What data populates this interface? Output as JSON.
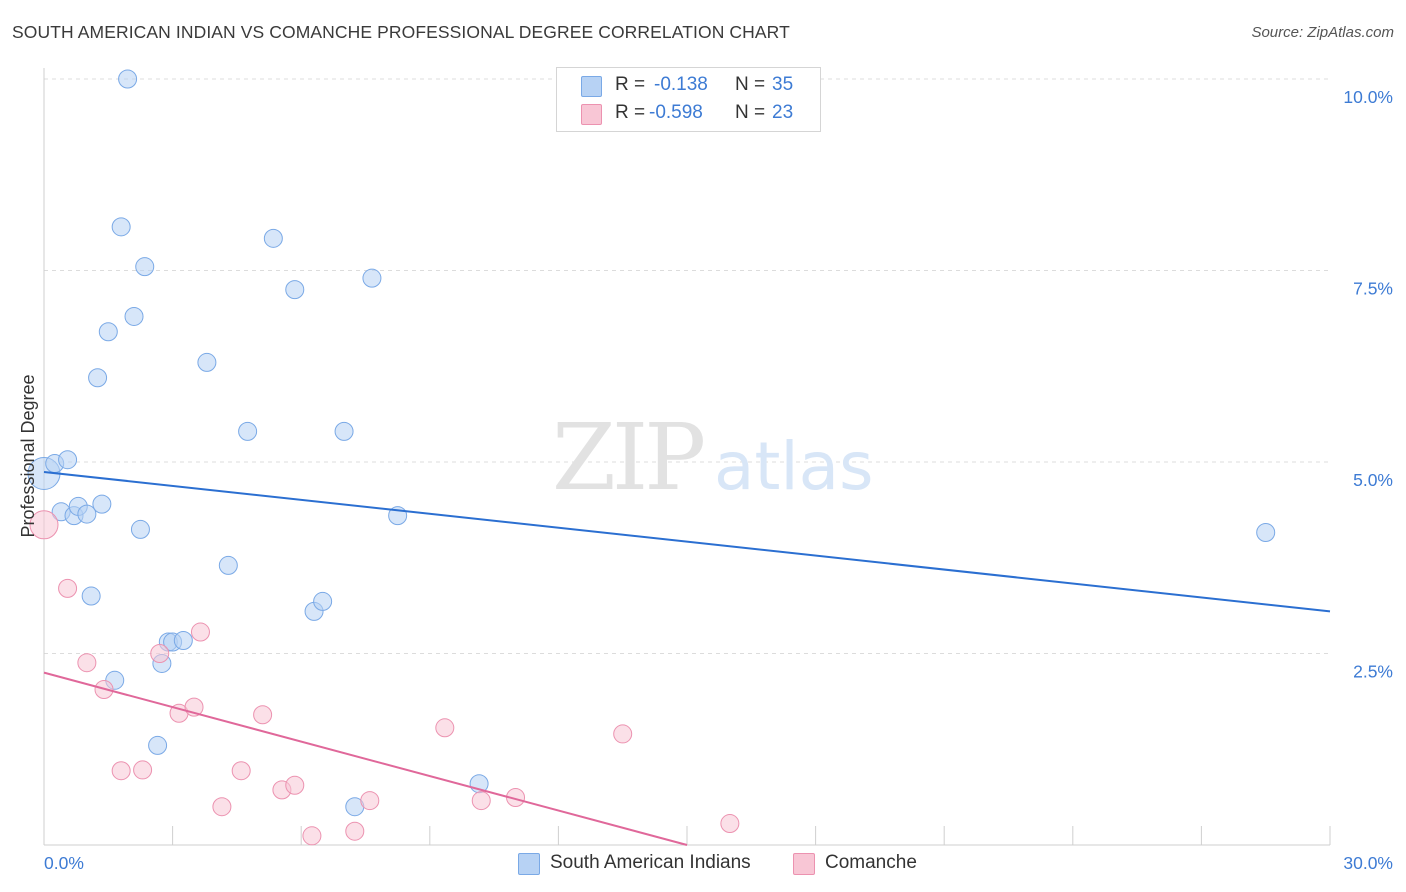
{
  "title": "SOUTH AMERICAN INDIAN VS COMANCHE PROFESSIONAL DEGREE CORRELATION CHART",
  "source": "Source: ZipAtlas.com",
  "watermark": {
    "zip": "ZIP",
    "atlas": "atlas"
  },
  "legend": {
    "r_label": "R =",
    "n_label": "N =",
    "rows": [
      {
        "r": "-0.138",
        "n": "35"
      },
      {
        "r": "-0.598",
        "n": "23"
      }
    ]
  },
  "colors": {
    "blue_fill": "#b7d2f4",
    "blue_stroke": "#7aa9e6",
    "blue_line": "#2b6fd1",
    "pink_fill": "#f8c6d5",
    "pink_stroke": "#ec92b0",
    "pink_line": "#e0689a",
    "accent_text": "#3d7bd4"
  },
  "chart_data": {
    "type": "scatter",
    "title": "SOUTH AMERICAN INDIAN VS COMANCHE PROFESSIONAL DEGREE CORRELATION CHART",
    "xlabel": "",
    "ylabel": "Professional Degree",
    "xlim": [
      0,
      30
    ],
    "ylim": [
      0,
      10
    ],
    "x_tick_labels": [
      "0.0%",
      "30.0%"
    ],
    "y_tick_labels": [
      "10.0%",
      "7.5%",
      "5.0%",
      "2.5%"
    ],
    "y_tick_values": [
      10,
      7.5,
      5,
      2.5
    ],
    "x_minor_ticks": [
      3,
      6,
      9,
      12,
      15,
      18,
      21,
      24,
      27,
      30
    ],
    "grid": true,
    "series": [
      {
        "name": "South American Indians",
        "color": "blue",
        "trend": {
          "x0": 0,
          "y0": 4.87,
          "x1": 30,
          "y1": 3.05
        },
        "points": [
          [
            0.0,
            4.85,
            16
          ],
          [
            0.25,
            4.98,
            9
          ],
          [
            0.55,
            5.03,
            9
          ],
          [
            0.4,
            4.35,
            9
          ],
          [
            0.7,
            4.3,
            9
          ],
          [
            0.8,
            4.42,
            9
          ],
          [
            1.0,
            4.32,
            9
          ],
          [
            1.35,
            4.45,
            9
          ],
          [
            1.1,
            3.25,
            9
          ],
          [
            1.25,
            6.1,
            9
          ],
          [
            1.5,
            6.7,
            9
          ],
          [
            1.8,
            8.07,
            9
          ],
          [
            1.95,
            10.0,
            9
          ],
          [
            2.1,
            6.9,
            9
          ],
          [
            2.25,
            4.12,
            9
          ],
          [
            2.35,
            7.55,
            9
          ],
          [
            1.65,
            2.15,
            9
          ],
          [
            2.65,
            1.3,
            9
          ],
          [
            2.75,
            2.37,
            9
          ],
          [
            2.9,
            2.65,
            9
          ],
          [
            3.0,
            2.65,
            9
          ],
          [
            3.25,
            2.67,
            9
          ],
          [
            3.8,
            6.3,
            9
          ],
          [
            4.3,
            3.65,
            9
          ],
          [
            4.75,
            5.4,
            9
          ],
          [
            5.35,
            7.92,
            9
          ],
          [
            5.85,
            7.25,
            9
          ],
          [
            6.3,
            3.05,
            9
          ],
          [
            6.5,
            3.18,
            9
          ],
          [
            7.0,
            5.4,
            9
          ],
          [
            7.25,
            0.5,
            9
          ],
          [
            7.65,
            7.4,
            9
          ],
          [
            8.25,
            4.3,
            9
          ],
          [
            10.15,
            0.8,
            9
          ],
          [
            28.5,
            4.08,
            9
          ]
        ]
      },
      {
        "name": "Comanche",
        "color": "pink",
        "trend": {
          "x0": 0,
          "y0": 2.25,
          "x1": 15,
          "y1": 0.0
        },
        "points": [
          [
            0.0,
            4.18,
            14
          ],
          [
            0.55,
            3.35,
            9
          ],
          [
            1.0,
            2.38,
            9
          ],
          [
            1.4,
            2.03,
            9
          ],
          [
            1.8,
            0.97,
            9
          ],
          [
            2.3,
            0.98,
            9
          ],
          [
            2.7,
            2.5,
            9
          ],
          [
            3.15,
            1.72,
            9
          ],
          [
            3.5,
            1.8,
            9
          ],
          [
            3.65,
            2.78,
            9
          ],
          [
            4.15,
            0.5,
            9
          ],
          [
            4.6,
            0.97,
            9
          ],
          [
            5.1,
            1.7,
            9
          ],
          [
            5.55,
            0.72,
            9
          ],
          [
            5.85,
            0.78,
            9
          ],
          [
            6.25,
            0.12,
            9
          ],
          [
            7.25,
            0.18,
            9
          ],
          [
            7.6,
            0.58,
            9
          ],
          [
            9.35,
            1.53,
            9
          ],
          [
            10.2,
            0.58,
            9
          ],
          [
            11.0,
            0.62,
            9
          ],
          [
            13.5,
            1.45,
            9
          ],
          [
            16.0,
            0.28,
            9
          ]
        ]
      }
    ]
  }
}
